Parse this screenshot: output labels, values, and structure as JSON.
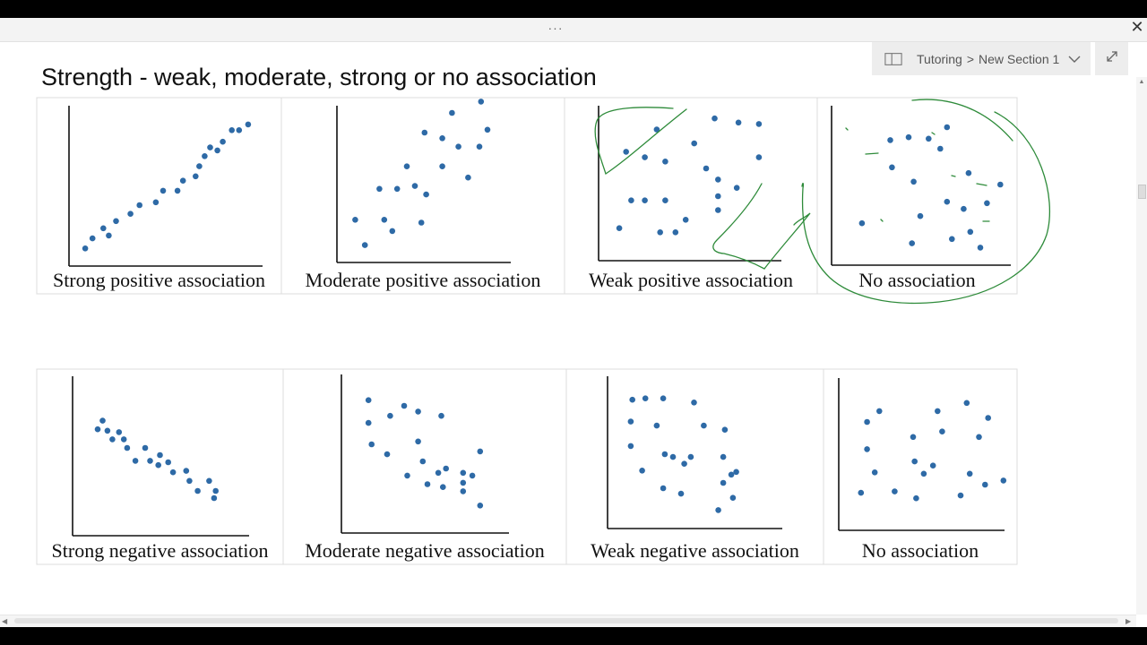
{
  "window": {
    "more_label": "···",
    "close_label": "✕",
    "breadcrumb": {
      "notebook": "Tutoring",
      "separator": ">",
      "section": "New Section 1"
    },
    "icons": {
      "notebook": "notebook-icon",
      "chevron": "chevron-down-icon",
      "expand": "expand-icon"
    }
  },
  "page": {
    "title": "Strength - weak, moderate, strong or no association",
    "ink_color": "#2e8b3a",
    "dot_color": "#2e6aa6"
  },
  "chart_data": [
    {
      "type": "scatter",
      "caption": "Strong positive association",
      "points": [
        [
          0.6,
          0.6
        ],
        [
          1,
          1.3
        ],
        [
          1.6,
          2
        ],
        [
          1.9,
          1.5
        ],
        [
          2.3,
          2.5
        ],
        [
          3.1,
          3
        ],
        [
          3.6,
          3.6
        ],
        [
          4.5,
          3.8
        ],
        [
          4.9,
          4.6
        ],
        [
          5.7,
          4.6
        ],
        [
          6,
          5.3
        ],
        [
          6.7,
          5.6
        ],
        [
          6.9,
          6.3
        ],
        [
          7.2,
          7
        ],
        [
          7.5,
          7.6
        ],
        [
          7.9,
          7.4
        ],
        [
          8.2,
          8
        ],
        [
          8.7,
          8.8
        ],
        [
          9.1,
          8.8
        ],
        [
          9.6,
          9.2
        ]
      ]
    },
    {
      "type": "scatter",
      "caption": "Moderate positive association",
      "points": [
        [
          0.8,
          2.4
        ],
        [
          1.4,
          0.6
        ],
        [
          2.3,
          4.6
        ],
        [
          2.6,
          2.4
        ],
        [
          3.1,
          1.6
        ],
        [
          3.4,
          4.6
        ],
        [
          4,
          6.2
        ],
        [
          4.5,
          4.8
        ],
        [
          4.9,
          2.2
        ],
        [
          5.2,
          4.2
        ],
        [
          5.1,
          8.6
        ],
        [
          6.2,
          6.2
        ],
        [
          6.2,
          8.2
        ],
        [
          6.8,
          10
        ],
        [
          7.2,
          7.6
        ],
        [
          7.8,
          5.4
        ],
        [
          8.6,
          10.8
        ],
        [
          8.5,
          7.6
        ],
        [
          9,
          8.8
        ]
      ]
    },
    {
      "type": "scatter",
      "caption": "Weak positive association",
      "points": [
        [
          1.3,
          7.2
        ],
        [
          1.6,
          3.7
        ],
        [
          0.9,
          1.7
        ],
        [
          2.4,
          6.8
        ],
        [
          2.4,
          3.7
        ],
        [
          3.1,
          8.8
        ],
        [
          3.6,
          6.5
        ],
        [
          3.3,
          1.4
        ],
        [
          3.6,
          3.7
        ],
        [
          4.2,
          1.4
        ],
        [
          4.8,
          2.3
        ],
        [
          5.3,
          7.8
        ],
        [
          6,
          6
        ],
        [
          6.5,
          9.6
        ],
        [
          6.7,
          4
        ],
        [
          6.7,
          5.2
        ],
        [
          6.7,
          3
        ],
        [
          7.8,
          4.6
        ],
        [
          7.9,
          9.3
        ],
        [
          9.1,
          9.2
        ],
        [
          9.1,
          6.8
        ]
      ]
    },
    {
      "type": "scatter",
      "caption": "No association",
      "points": [
        [
          1.5,
          2.3
        ],
        [
          3.3,
          6.2
        ],
        [
          4.5,
          0.9
        ],
        [
          3.2,
          8.1
        ],
        [
          4.6,
          5.2
        ],
        [
          5,
          2.8
        ],
        [
          5.5,
          8.2
        ],
        [
          6.2,
          7.5
        ],
        [
          6.6,
          3.8
        ],
        [
          7.6,
          3.3
        ],
        [
          7.9,
          5.8
        ],
        [
          6.9,
          1.2
        ],
        [
          8,
          1.7
        ],
        [
          8.6,
          0.6
        ],
        [
          9,
          3.7
        ],
        [
          9.8,
          5
        ],
        [
          4.3,
          8.3
        ],
        [
          6.6,
          9
        ]
      ]
    },
    {
      "type": "scatter",
      "caption": "Strong negative association",
      "points": [
        [
          1.5,
          7.4
        ],
        [
          1.2,
          6.8
        ],
        [
          1.8,
          6.7
        ],
        [
          2.1,
          6.1
        ],
        [
          2.5,
          6.6
        ],
        [
          2.8,
          6.1
        ],
        [
          3,
          5.5
        ],
        [
          3.5,
          4.6
        ],
        [
          4.1,
          5.5
        ],
        [
          4.4,
          4.6
        ],
        [
          4.9,
          4.3
        ],
        [
          5,
          5
        ],
        [
          5.5,
          4.5
        ],
        [
          5.8,
          3.8
        ],
        [
          6.6,
          3.9
        ],
        [
          6.8,
          3.2
        ],
        [
          7.3,
          2.5
        ],
        [
          8,
          3.2
        ],
        [
          8.4,
          2.5
        ],
        [
          8.3,
          2
        ]
      ]
    },
    {
      "type": "scatter",
      "caption": "Moderate negative association",
      "points": [
        [
          1.4,
          8.7
        ],
        [
          1.4,
          7.1
        ],
        [
          1.6,
          5.6
        ],
        [
          2.8,
          7.6
        ],
        [
          2.6,
          4.9
        ],
        [
          3.7,
          8.3
        ],
        [
          4.6,
          7.9
        ],
        [
          4.6,
          5.8
        ],
        [
          3.9,
          3.4
        ],
        [
          4.9,
          4.4
        ],
        [
          5.2,
          2.8
        ],
        [
          5.9,
          3.6
        ],
        [
          6.1,
          7.6
        ],
        [
          6.2,
          2.6
        ],
        [
          6.4,
          3.9
        ],
        [
          7.5,
          2.9
        ],
        [
          7.5,
          3.6
        ],
        [
          7.5,
          2.3
        ],
        [
          8.1,
          3.4
        ],
        [
          8.6,
          5.1
        ],
        [
          8.6,
          1.3
        ]
      ]
    },
    {
      "type": "scatter",
      "caption": "Weak negative association",
      "points": [
        [
          1.2,
          8.8
        ],
        [
          1.1,
          7.2
        ],
        [
          1.1,
          5.4
        ],
        [
          1.8,
          3.6
        ],
        [
          2,
          8.9
        ],
        [
          2.7,
          6.9
        ],
        [
          3.1,
          8.9
        ],
        [
          3.2,
          4.8
        ],
        [
          3.1,
          2.3
        ],
        [
          3.7,
          4.6
        ],
        [
          4.2,
          1.9
        ],
        [
          4.4,
          4.1
        ],
        [
          4.8,
          4.6
        ],
        [
          5,
          8.6
        ],
        [
          5.6,
          6.9
        ],
        [
          6.9,
          6.6
        ],
        [
          6.8,
          4.6
        ],
        [
          6.8,
          2.7
        ],
        [
          7.3,
          3.3
        ],
        [
          7.6,
          3.5
        ],
        [
          7.4,
          1.6
        ],
        [
          6.5,
          0.7
        ]
      ]
    },
    {
      "type": "scatter",
      "caption": "No association",
      "points": [
        [
          1.1,
          2.1
        ],
        [
          1.5,
          7.3
        ],
        [
          1.5,
          5.3
        ],
        [
          2,
          3.6
        ],
        [
          2.3,
          8.1
        ],
        [
          3.3,
          2.2
        ],
        [
          4.5,
          6.2
        ],
        [
          4.6,
          4.4
        ],
        [
          4.7,
          1.7
        ],
        [
          5.2,
          3.5
        ],
        [
          5.8,
          4.1
        ],
        [
          6.1,
          8.1
        ],
        [
          6.4,
          6.6
        ],
        [
          7.6,
          1.9
        ],
        [
          8,
          8.7
        ],
        [
          8.2,
          3.5
        ],
        [
          8.8,
          6.2
        ],
        [
          9.2,
          2.7
        ],
        [
          9.4,
          7.6
        ],
        [
          10.4,
          3
        ]
      ]
    }
  ]
}
